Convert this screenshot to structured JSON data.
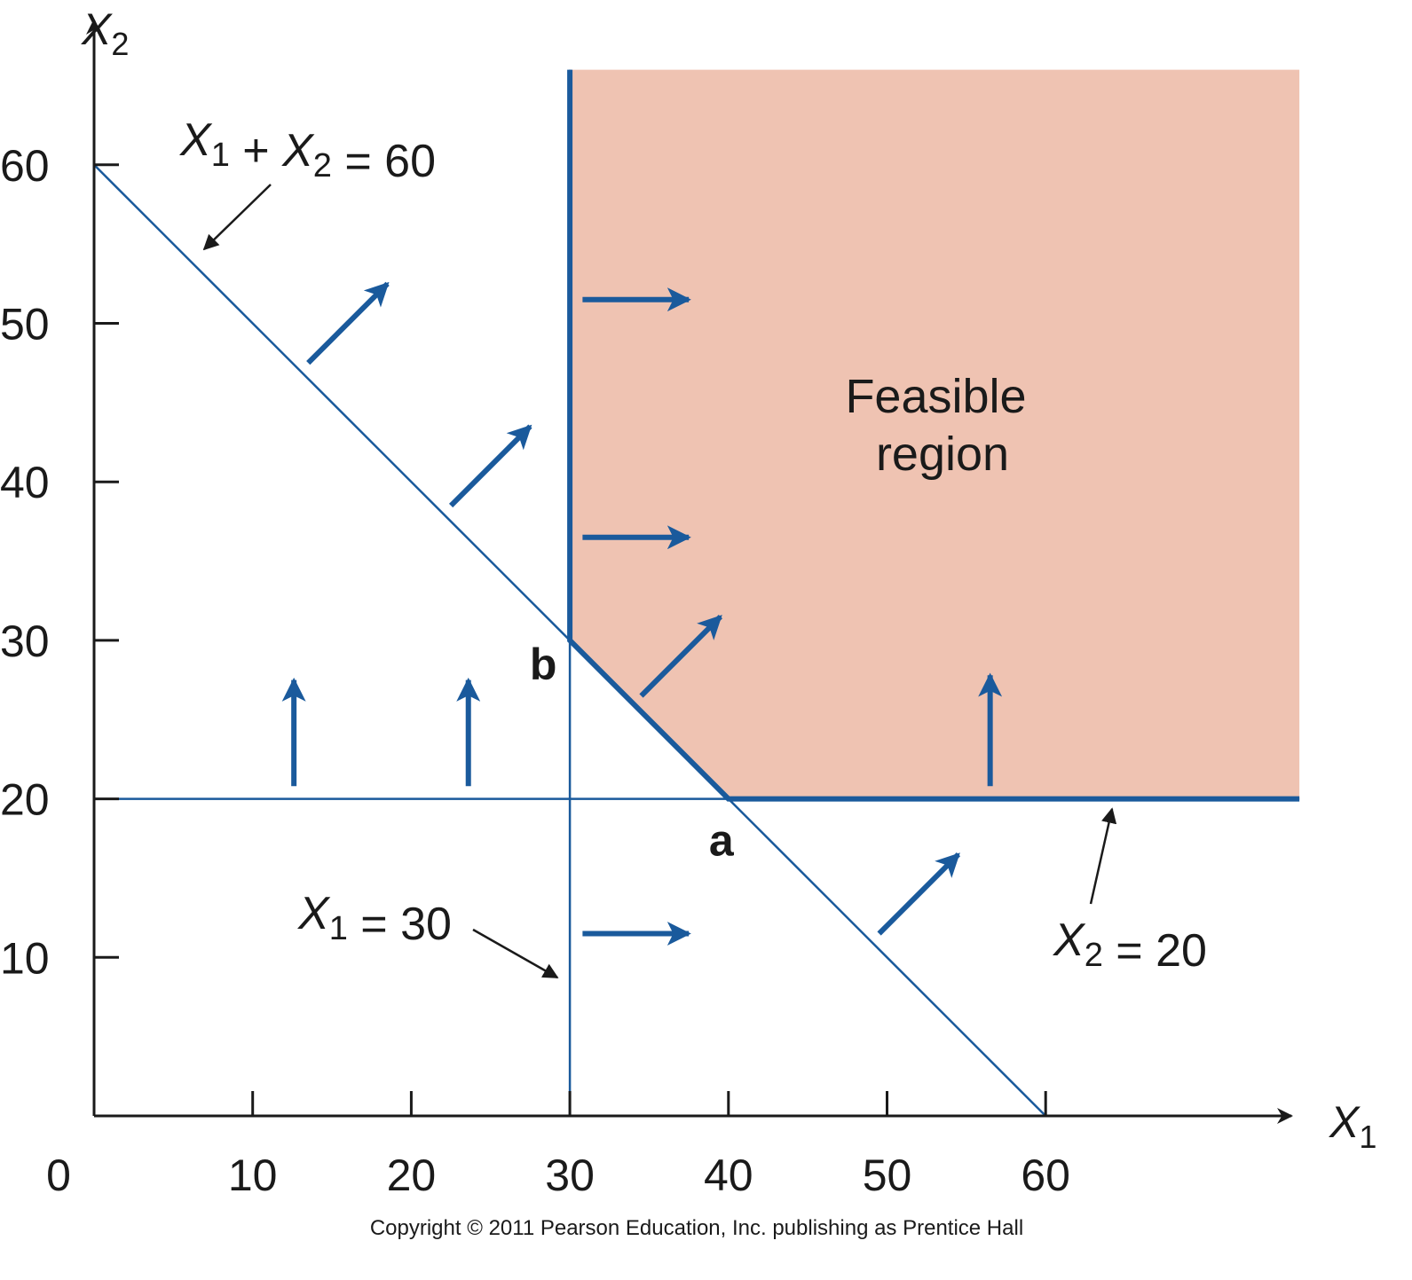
{
  "chart_data": {
    "type": "line",
    "x_axis": {
      "label": "X",
      "label_sub": "1",
      "min": 0,
      "max": 68,
      "ticks": [
        10,
        20,
        30,
        40,
        50,
        60
      ],
      "origin_label": "0"
    },
    "y_axis": {
      "label": "X",
      "label_sub": "2",
      "min": 0,
      "max": 68,
      "ticks": [
        10,
        20,
        30,
        40,
        50,
        60
      ]
    },
    "constraints": [
      {
        "id": "sum",
        "points": [
          [
            0,
            60
          ],
          [
            60,
            0
          ]
        ],
        "label_parts": [
          "X",
          "1",
          " + ",
          "X",
          "2",
          " = 60"
        ]
      },
      {
        "id": "x1",
        "points": [
          [
            30,
            0
          ],
          [
            30,
            66
          ]
        ],
        "label_parts": [
          "X",
          "1",
          " = 30"
        ]
      },
      {
        "id": "x2",
        "points": [
          [
            1.5,
            20
          ],
          [
            76,
            20
          ]
        ],
        "label_parts": [
          "X",
          "2",
          " = 20"
        ]
      }
    ],
    "feasible_region": {
      "label_lines": [
        "Feasible",
        "region"
      ],
      "color": "#efc3b2",
      "vertices": [
        [
          30,
          66
        ],
        [
          30,
          30
        ],
        [
          40,
          20
        ],
        [
          76,
          20
        ],
        [
          76,
          66
        ]
      ]
    },
    "corner_points": [
      {
        "label": "b",
        "x": 30,
        "y": 30
      },
      {
        "label": "a",
        "x": 40,
        "y": 20
      }
    ],
    "direction_arrows": [
      {
        "from": [
          13.5,
          47.5
        ],
        "to": [
          18.5,
          52.5
        ]
      },
      {
        "from": [
          22.5,
          38.5
        ],
        "to": [
          27.5,
          43.5
        ]
      },
      {
        "from": [
          34.5,
          26.5
        ],
        "to": [
          39.5,
          31.5
        ]
      },
      {
        "from": [
          49.5,
          11.5
        ],
        "to": [
          54.5,
          16.5
        ]
      },
      {
        "from": [
          30.8,
          51.5
        ],
        "to": [
          37.5,
          51.5
        ]
      },
      {
        "from": [
          30.8,
          36.5
        ],
        "to": [
          37.5,
          36.5
        ]
      },
      {
        "from": [
          30.8,
          11.5
        ],
        "to": [
          37.5,
          11.5
        ]
      },
      {
        "from": [
          12.6,
          20.8
        ],
        "to": [
          12.6,
          27.5
        ]
      },
      {
        "from": [
          23.6,
          20.8
        ],
        "to": [
          23.6,
          27.5
        ]
      },
      {
        "from": [
          56.5,
          20.8
        ],
        "to": [
          56.5,
          27.8
        ]
      }
    ],
    "grid": false,
    "colors": {
      "line": "#1a5a9c",
      "arrow": "#1a5a9c",
      "axis": "#1a1a1a",
      "feasible": "#efc3b2"
    }
  },
  "copyright": "Copyright © 2011 Pearson Education, Inc. publishing as Prentice Hall"
}
